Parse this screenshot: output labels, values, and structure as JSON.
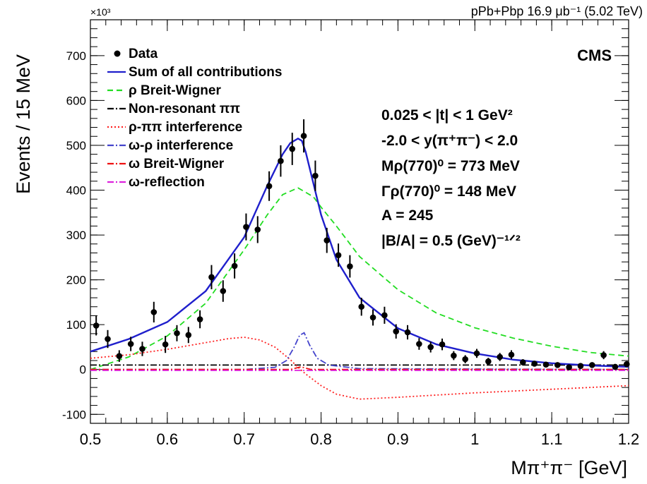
{
  "header": {
    "dataset": "pPb+Pbp 16.9 μb⁻¹ (5.02 TeV)",
    "experiment": "CMS",
    "y_multiplier": "×10³"
  },
  "annotations": [
    "0.025 < |t| < 1 GeV²",
    "-2.0 < y(π⁺π⁻) < 2.0",
    "Mρ(770)⁰ = 773 MeV",
    "Γρ(770)⁰ = 148 MeV",
    "A = 245",
    "|B/A| = 0.5 (GeV)⁻¹ᐟ²"
  ],
  "chart_data": {
    "type": "scatter",
    "xlabel": "Mπ⁺π⁻ [GeV]",
    "ylabel": "Events / 15 MeV",
    "xlim": [
      0.5,
      1.2
    ],
    "ylim": [
      -120,
      780
    ],
    "x_ticks": [
      0.5,
      0.6,
      0.7,
      0.8,
      0.9,
      1.0,
      1.1,
      1.2
    ],
    "x_tick_labels": [
      "0.5",
      "0.6",
      "0.7",
      "0.8",
      "0.9",
      "1",
      "1.1",
      "1.2"
    ],
    "y_ticks": [
      -100,
      0,
      100,
      200,
      300,
      400,
      500,
      600,
      700
    ],
    "y_tick_labels": [
      "-100",
      "0",
      "100",
      "200",
      "300",
      "400",
      "500",
      "600",
      "700"
    ],
    "legend_position": "top-left",
    "data": {
      "name": "Data",
      "x": [
        0.5075,
        0.5225,
        0.5375,
        0.5525,
        0.5675,
        0.5825,
        0.5975,
        0.6125,
        0.6275,
        0.6425,
        0.6575,
        0.6725,
        0.6875,
        0.7025,
        0.7175,
        0.7325,
        0.7475,
        0.7625,
        0.7775,
        0.7925,
        0.8075,
        0.8225,
        0.8375,
        0.8525,
        0.8675,
        0.8825,
        0.8975,
        0.9125,
        0.9275,
        0.9425,
        0.9575,
        0.9725,
        0.9875,
        1.0025,
        1.0175,
        1.0325,
        1.0475,
        1.0625,
        1.0775,
        1.0925,
        1.1075,
        1.1225,
        1.1375,
        1.1525,
        1.1675,
        1.1825,
        1.1975
      ],
      "y": [
        98,
        68,
        30,
        57,
        46,
        128,
        56,
        81,
        77,
        112,
        206,
        175,
        231,
        318,
        312,
        409,
        465,
        492,
        521,
        432,
        288,
        255,
        230,
        140,
        116,
        121,
        85,
        83,
        57,
        50,
        56,
        31,
        23,
        36,
        18,
        28,
        33,
        16,
        13,
        11,
        10,
        5,
        8,
        10,
        32,
        6,
        12
      ],
      "err": [
        22,
        20,
        13,
        16,
        16,
        23,
        19,
        18,
        18,
        20,
        27,
        24,
        28,
        30,
        30,
        33,
        35,
        36,
        37,
        34,
        28,
        26,
        25,
        20,
        18,
        19,
        16,
        16,
        13,
        12,
        13,
        10,
        9,
        10,
        8,
        9,
        10,
        7,
        6,
        6,
        6,
        4,
        5,
        6,
        9,
        4,
        6
      ]
    },
    "series": [
      {
        "name": "Sum of all contributions",
        "color": "#1f1fcc",
        "style": "solid",
        "x": [
          0.5,
          0.55,
          0.6,
          0.65,
          0.7,
          0.73,
          0.75,
          0.76,
          0.77,
          0.775,
          0.78,
          0.79,
          0.8,
          0.82,
          0.85,
          0.9,
          0.95,
          1.0,
          1.05,
          1.1,
          1.15,
          1.2
        ],
        "y": [
          40,
          68,
          106,
          175,
          295,
          410,
          480,
          505,
          515,
          510,
          485,
          415,
          345,
          245,
          160,
          92,
          56,
          36,
          22,
          14,
          9,
          6
        ]
      },
      {
        "name": "ρ Breit-Wigner",
        "color": "#22dd22",
        "style": "dashed",
        "x": [
          0.5,
          0.55,
          0.6,
          0.65,
          0.7,
          0.73,
          0.75,
          0.77,
          0.79,
          0.8,
          0.82,
          0.85,
          0.9,
          0.95,
          1.0,
          1.05,
          1.1,
          1.15,
          1.2
        ],
        "y": [
          0,
          28,
          75,
          148,
          267,
          345,
          390,
          405,
          385,
          362,
          320,
          252,
          178,
          126,
          93,
          70,
          52,
          38,
          30
        ]
      },
      {
        "name": "Non-resonant ππ",
        "color": "#000000",
        "style": "dashdot",
        "x": [
          0.5,
          1.2
        ],
        "y": [
          10,
          10
        ]
      },
      {
        "name": "ρ-ππ interference",
        "color": "#ff2222",
        "style": "dotted",
        "x": [
          0.5,
          0.55,
          0.6,
          0.65,
          0.68,
          0.7,
          0.72,
          0.74,
          0.76,
          0.77,
          0.78,
          0.8,
          0.82,
          0.85,
          0.9,
          1.0,
          1.1,
          1.2
        ],
        "y": [
          25,
          33,
          45,
          60,
          69,
          72,
          66,
          50,
          22,
          5,
          -10,
          -36,
          -55,
          -66,
          -62,
          -52,
          -44,
          -36
        ]
      },
      {
        "name": "ω-ρ interference",
        "color": "#4444cc",
        "style": "dashdot",
        "x": [
          0.5,
          0.7,
          0.74,
          0.755,
          0.765,
          0.772,
          0.778,
          0.785,
          0.795,
          0.81,
          0.85,
          1.2
        ],
        "y": [
          0,
          0,
          5,
          20,
          50,
          76,
          82,
          55,
          25,
          10,
          2,
          0
        ]
      },
      {
        "name": "ω Breit-Wigner",
        "color": "#ee1111",
        "style": "dashdot",
        "x": [
          0.5,
          0.76,
          0.7735,
          0.787,
          1.2
        ],
        "y": [
          0,
          0,
          6,
          0,
          0
        ]
      },
      {
        "name": "ω-reflection",
        "color": "#dd22dd",
        "style": "dashdot",
        "x": [
          0.5,
          1.2
        ],
        "y": [
          -2,
          -2
        ]
      }
    ]
  }
}
